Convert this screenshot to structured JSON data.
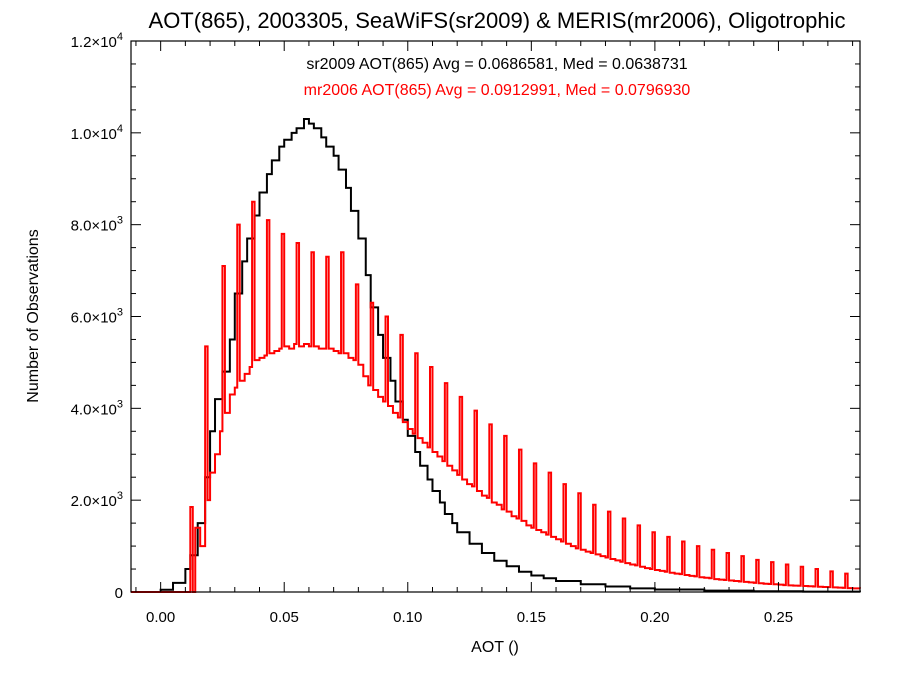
{
  "chart_data": {
    "type": "line",
    "title": "AOT(865), 2003305, SeaWiFS(sr2009) & MERIS(mr2006), Oligotrophic",
    "xlabel": "AOT ()",
    "ylabel": "Number of Observations",
    "xlim": [
      -0.012,
      0.283
    ],
    "ylim": [
      0,
      12000
    ],
    "x_ticks": [
      {
        "value": 0.0,
        "label": "0.00"
      },
      {
        "value": 0.05,
        "label": "0.05"
      },
      {
        "value": 0.1,
        "label": "0.10"
      },
      {
        "value": 0.15,
        "label": "0.15"
      },
      {
        "value": 0.2,
        "label": "0.20"
      },
      {
        "value": 0.25,
        "label": "0.25"
      }
    ],
    "y_ticks": [
      {
        "value": 0,
        "mantissa": "0",
        "exponent": ""
      },
      {
        "value": 2000,
        "mantissa": "2.0×10",
        "exponent": "3"
      },
      {
        "value": 4000,
        "mantissa": "4.0×10",
        "exponent": "3"
      },
      {
        "value": 6000,
        "mantissa": "6.0×10",
        "exponent": "3"
      },
      {
        "value": 8000,
        "mantissa": "8.0×10",
        "exponent": "3"
      },
      {
        "value": 10000,
        "mantissa": "1.0×10",
        "exponent": "4"
      },
      {
        "value": 12000,
        "mantissa": "1.2×10",
        "exponent": "4"
      }
    ],
    "annotations": [
      {
        "text": "sr2009 AOT(865) Avg = 0.0686581, Med = 0.0638731",
        "color": "#000000"
      },
      {
        "text": "mr2006 AOT(865) Avg = 0.0912991, Med = 0.0796930",
        "color": "#ff0000"
      }
    ],
    "series": [
      {
        "color": "#000000",
        "style": "step",
        "points": [
          [
            -0.012,
            0
          ],
          [
            0.0,
            50
          ],
          [
            0.005,
            200
          ],
          [
            0.01,
            500
          ],
          [
            0.012,
            800
          ],
          [
            0.015,
            1500
          ],
          [
            0.018,
            2500
          ],
          [
            0.02,
            3500
          ],
          [
            0.022,
            4200
          ],
          [
            0.025,
            4800
          ],
          [
            0.028,
            5500
          ],
          [
            0.03,
            6500
          ],
          [
            0.033,
            7200
          ],
          [
            0.035,
            7700
          ],
          [
            0.038,
            8200
          ],
          [
            0.04,
            8700
          ],
          [
            0.043,
            9100
          ],
          [
            0.045,
            9400
          ],
          [
            0.048,
            9700
          ],
          [
            0.05,
            9850
          ],
          [
            0.053,
            10000
          ],
          [
            0.055,
            10100
          ],
          [
            0.058,
            10300
          ],
          [
            0.06,
            10200
          ],
          [
            0.062,
            10100
          ],
          [
            0.065,
            9900
          ],
          [
            0.067,
            9700
          ],
          [
            0.07,
            9500
          ],
          [
            0.072,
            9200
          ],
          [
            0.075,
            8800
          ],
          [
            0.077,
            8300
          ],
          [
            0.08,
            7700
          ],
          [
            0.083,
            6900
          ],
          [
            0.085,
            6200
          ],
          [
            0.088,
            5600
          ],
          [
            0.09,
            5100
          ],
          [
            0.093,
            4600
          ],
          [
            0.095,
            4150
          ],
          [
            0.098,
            3750
          ],
          [
            0.1,
            3400
          ],
          [
            0.103,
            3050
          ],
          [
            0.105,
            2750
          ],
          [
            0.108,
            2450
          ],
          [
            0.11,
            2200
          ],
          [
            0.113,
            1950
          ],
          [
            0.115,
            1700
          ],
          [
            0.118,
            1500
          ],
          [
            0.12,
            1300
          ],
          [
            0.125,
            1050
          ],
          [
            0.13,
            850
          ],
          [
            0.135,
            680
          ],
          [
            0.14,
            560
          ],
          [
            0.145,
            440
          ],
          [
            0.15,
            360
          ],
          [
            0.155,
            300
          ],
          [
            0.16,
            240
          ],
          [
            0.17,
            170
          ],
          [
            0.18,
            120
          ],
          [
            0.19,
            80
          ],
          [
            0.2,
            55
          ],
          [
            0.22,
            30
          ],
          [
            0.24,
            15
          ],
          [
            0.26,
            8
          ],
          [
            0.283,
            5
          ]
        ]
      },
      {
        "color": "#ff0000",
        "style": "step",
        "points": [
          [
            -0.012,
            0
          ],
          [
            0.012,
            0
          ],
          [
            0.012,
            1850
          ],
          [
            0.013,
            0
          ],
          [
            0.014,
            1400
          ],
          [
            0.016,
            1000
          ],
          [
            0.018,
            5350
          ],
          [
            0.019,
            2000
          ],
          [
            0.02,
            2600
          ],
          [
            0.022,
            3000
          ],
          [
            0.024,
            3500
          ],
          [
            0.025,
            7100
          ],
          [
            0.026,
            3900
          ],
          [
            0.028,
            4300
          ],
          [
            0.03,
            4450
          ],
          [
            0.031,
            8000
          ],
          [
            0.032,
            4600
          ],
          [
            0.034,
            4750
          ],
          [
            0.036,
            4900
          ],
          [
            0.037,
            8500
          ],
          [
            0.038,
            5050
          ],
          [
            0.04,
            5100
          ],
          [
            0.042,
            5150
          ],
          [
            0.043,
            8100
          ],
          [
            0.044,
            5200
          ],
          [
            0.046,
            5250
          ],
          [
            0.048,
            5300
          ],
          [
            0.049,
            7800
          ],
          [
            0.05,
            5350
          ],
          [
            0.052,
            5300
          ],
          [
            0.054,
            5400
          ],
          [
            0.055,
            7600
          ],
          [
            0.056,
            5350
          ],
          [
            0.058,
            5400
          ],
          [
            0.06,
            5350
          ],
          [
            0.061,
            7400
          ],
          [
            0.062,
            5350
          ],
          [
            0.064,
            5300
          ],
          [
            0.066,
            5300
          ],
          [
            0.067,
            7300
          ],
          [
            0.068,
            5300
          ],
          [
            0.07,
            5250
          ],
          [
            0.072,
            5200
          ],
          [
            0.073,
            7400
          ],
          [
            0.074,
            5200
          ],
          [
            0.076,
            5100
          ],
          [
            0.078,
            5050
          ],
          [
            0.079,
            6700
          ],
          [
            0.08,
            4950
          ],
          [
            0.082,
            4700
          ],
          [
            0.084,
            4500
          ],
          [
            0.085,
            6300
          ],
          [
            0.086,
            4400
          ],
          [
            0.088,
            4250
          ],
          [
            0.09,
            4150
          ],
          [
            0.091,
            6000
          ],
          [
            0.092,
            4050
          ],
          [
            0.094,
            3900
          ],
          [
            0.096,
            3800
          ],
          [
            0.097,
            5600
          ],
          [
            0.098,
            3700
          ],
          [
            0.1,
            3550
          ],
          [
            0.102,
            3450
          ],
          [
            0.103,
            5200
          ],
          [
            0.104,
            3350
          ],
          [
            0.106,
            3250
          ],
          [
            0.108,
            3150
          ],
          [
            0.109,
            4900
          ],
          [
            0.11,
            3050
          ],
          [
            0.112,
            2950
          ],
          [
            0.114,
            2850
          ],
          [
            0.115,
            4550
          ],
          [
            0.116,
            2750
          ],
          [
            0.118,
            2650
          ],
          [
            0.12,
            2550
          ],
          [
            0.121,
            4250
          ],
          [
            0.122,
            2450
          ],
          [
            0.124,
            2350
          ],
          [
            0.126,
            2300
          ],
          [
            0.127,
            3950
          ],
          [
            0.128,
            2200
          ],
          [
            0.13,
            2100
          ],
          [
            0.132,
            2050
          ],
          [
            0.133,
            3650
          ],
          [
            0.134,
            1950
          ],
          [
            0.136,
            1900
          ],
          [
            0.138,
            1800
          ],
          [
            0.139,
            3400
          ],
          [
            0.14,
            1750
          ],
          [
            0.142,
            1650
          ],
          [
            0.144,
            1600
          ],
          [
            0.145,
            3100
          ],
          [
            0.146,
            1550
          ],
          [
            0.148,
            1450
          ],
          [
            0.15,
            1400
          ],
          [
            0.151,
            2800
          ],
          [
            0.152,
            1350
          ],
          [
            0.154,
            1300
          ],
          [
            0.156,
            1250
          ],
          [
            0.157,
            2600
          ],
          [
            0.158,
            1200
          ],
          [
            0.16,
            1150
          ],
          [
            0.162,
            1100
          ],
          [
            0.163,
            2350
          ],
          [
            0.164,
            1050
          ],
          [
            0.166,
            1000
          ],
          [
            0.168,
            950
          ],
          [
            0.169,
            2150
          ],
          [
            0.17,
            920
          ],
          [
            0.172,
            880
          ],
          [
            0.174,
            850
          ],
          [
            0.175,
            1900
          ],
          [
            0.176,
            820
          ],
          [
            0.178,
            780
          ],
          [
            0.18,
            750
          ],
          [
            0.181,
            1750
          ],
          [
            0.182,
            720
          ],
          [
            0.184,
            690
          ],
          [
            0.186,
            660
          ],
          [
            0.187,
            1600
          ],
          [
            0.188,
            630
          ],
          [
            0.19,
            600
          ],
          [
            0.192,
            580
          ],
          [
            0.193,
            1450
          ],
          [
            0.194,
            550
          ],
          [
            0.196,
            520
          ],
          [
            0.198,
            500
          ],
          [
            0.199,
            1300
          ],
          [
            0.2,
            480
          ],
          [
            0.202,
            460
          ],
          [
            0.204,
            440
          ],
          [
            0.205,
            1200
          ],
          [
            0.206,
            420
          ],
          [
            0.208,
            400
          ],
          [
            0.21,
            390
          ],
          [
            0.211,
            1100
          ],
          [
            0.212,
            370
          ],
          [
            0.214,
            350
          ],
          [
            0.216,
            340
          ],
          [
            0.217,
            1000
          ],
          [
            0.218,
            320
          ],
          [
            0.22,
            310
          ],
          [
            0.222,
            300
          ],
          [
            0.223,
            920
          ],
          [
            0.224,
            280
          ],
          [
            0.226,
            270
          ],
          [
            0.228,
            260
          ],
          [
            0.229,
            850
          ],
          [
            0.23,
            250
          ],
          [
            0.232,
            240
          ],
          [
            0.234,
            230
          ],
          [
            0.235,
            780
          ],
          [
            0.236,
            220
          ],
          [
            0.238,
            210
          ],
          [
            0.24,
            200
          ],
          [
            0.241,
            700
          ],
          [
            0.242,
            190
          ],
          [
            0.244,
            180
          ],
          [
            0.246,
            175
          ],
          [
            0.247,
            650
          ],
          [
            0.248,
            170
          ],
          [
            0.25,
            160
          ],
          [
            0.252,
            150
          ],
          [
            0.253,
            600
          ],
          [
            0.254,
            145
          ],
          [
            0.256,
            140
          ],
          [
            0.258,
            135
          ],
          [
            0.259,
            550
          ],
          [
            0.26,
            130
          ],
          [
            0.262,
            125
          ],
          [
            0.264,
            120
          ],
          [
            0.265,
            500
          ],
          [
            0.266,
            115
          ],
          [
            0.268,
            110
          ],
          [
            0.27,
            105
          ],
          [
            0.271,
            450
          ],
          [
            0.272,
            100
          ],
          [
            0.274,
            95
          ],
          [
            0.276,
            90
          ],
          [
            0.277,
            400
          ],
          [
            0.278,
            85
          ],
          [
            0.28,
            80
          ],
          [
            0.283,
            75
          ]
        ]
      }
    ]
  }
}
